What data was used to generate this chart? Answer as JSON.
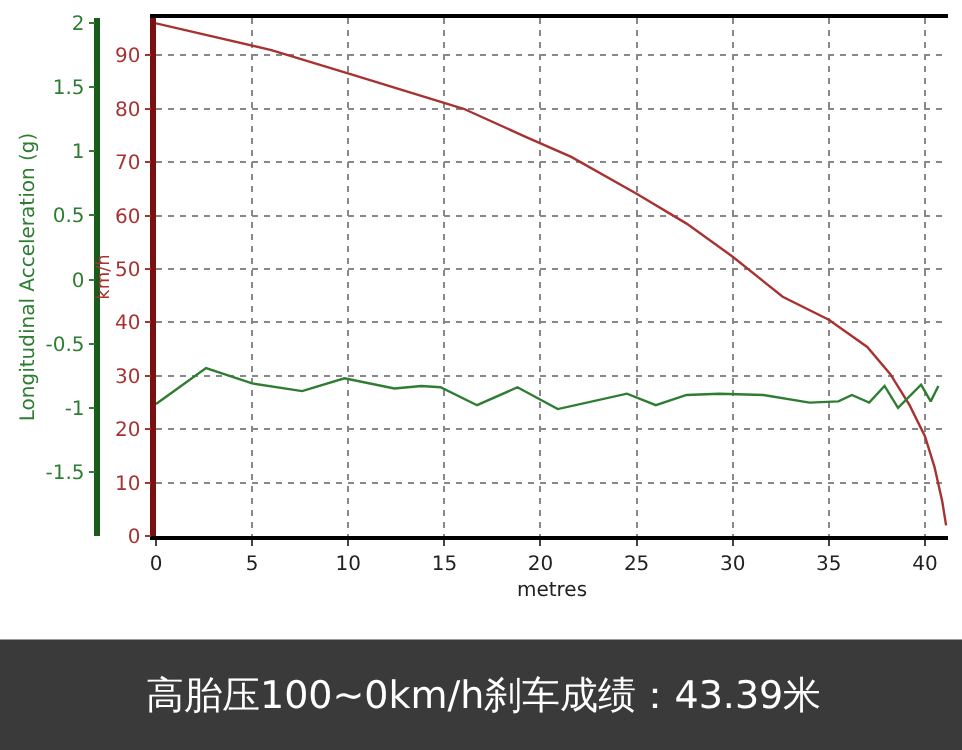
{
  "chart_data": {
    "type": "line",
    "title": "高胎压100~0km/h刹车成绩：43.39米",
    "xlabel": "metres",
    "ylabel": "km/h",
    "y2label": "Longitudinal Acceleration (g)",
    "series": [
      {
        "color": "#a83232",
        "x": [
          0,
          6,
          10.2,
          16,
          19.2,
          21.6,
          25,
          27.6,
          30,
          32.6,
          35,
          37,
          38.2,
          39.2,
          40,
          40.5,
          40.9,
          41.1
        ],
        "values": [
          96,
          91,
          86.4,
          80,
          74.8,
          71,
          64.1,
          58.5,
          52.3,
          44.8,
          40.5,
          35.4,
          30.3,
          24.5,
          18.7,
          12.9,
          6.5,
          2
        ]
      },
      {
        "color": "#2e7d32",
        "axis": "y2",
        "x": [
          0,
          2.6,
          5,
          7.6,
          9.8,
          12.4,
          13.8,
          14.8,
          16.7,
          18.8,
          20.9,
          24.5,
          26,
          27.6,
          29.3,
          31.6,
          34,
          35.5,
          36.2,
          37.1,
          37.9,
          38.6,
          39.8,
          40.3,
          40.7
        ],
        "values": [
          -0.97,
          -0.69,
          -0.81,
          -0.87,
          -0.77,
          -0.85,
          -0.83,
          -0.84,
          -0.98,
          -0.84,
          -1.01,
          -0.89,
          -0.98,
          -0.9,
          -0.89,
          -0.9,
          -0.96,
          -0.95,
          -0.9,
          -0.96,
          -0.83,
          -1.0,
          -0.82,
          -0.95,
          -0.83
        ]
      }
    ],
    "xlim": [
      0,
      41.2
    ],
    "xticks": [
      0,
      5,
      10,
      15,
      20,
      25,
      30,
      35,
      40
    ],
    "ylim": [
      0,
      97
    ],
    "yticks": [
      0,
      10,
      20,
      30,
      40,
      50,
      60,
      70,
      80,
      90
    ],
    "y2lim": [
      -2.0,
      2.04
    ],
    "y2ticks": [
      -1.5,
      -1,
      -0.5,
      0,
      0.5,
      1,
      1.5,
      2
    ],
    "grid": true,
    "legend": false,
    "marker": "none",
    "line_style": "solid"
  }
}
